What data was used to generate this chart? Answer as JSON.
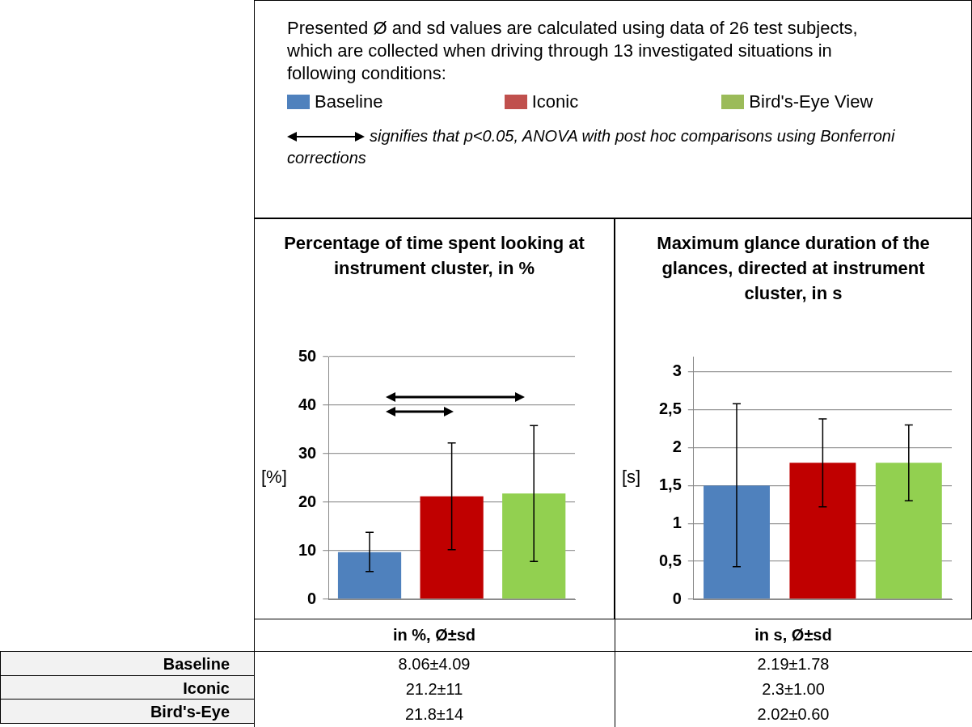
{
  "chart_data": [
    {
      "type": "other",
      "annotations": [
        "Presented Ø and sd values are calculated using data of 26 test subjects, which are collected when driving through 13 investigated situations in following conditions:",
        "signifies that p<0.05, ANOVA with post hoc comparisons using Bonferroni corrections"
      ],
      "categories": [
        "Baseline",
        "Iconic",
        "Bird's-Eye View"
      ],
      "colors": [
        "#4f81bd",
        "#c0504d",
        "#9bbb59"
      ]
    },
    {
      "type": "bar",
      "title": "Percentage of time spent looking at instrument cluster, in %",
      "ylabel": "[%]",
      "categories": [
        null,
        null,
        null
      ],
      "values": [
        9.7,
        21.2,
        21.8
      ],
      "colors": [
        "#4f81bd",
        "#c00000",
        "#92d050"
      ],
      "errors": [
        [
          5.7,
          13.8
        ],
        [
          10.2,
          32.2
        ],
        [
          7.8,
          35.8
        ]
      ],
      "ylim": [
        0,
        50
      ],
      "yticks": [
        0,
        10,
        20,
        30,
        40,
        50
      ],
      "grid": "y",
      "legend": false,
      "annotations": [
        "in %, Ø±sd",
        "8.06±4.09",
        "21.2±11",
        "21.8±14"
      ]
    },
    {
      "type": "bar",
      "title": "Maximum glance duration of the glances, directed at instrument cluster, in s",
      "ylabel": "[s]",
      "categories": [
        null,
        null,
        null
      ],
      "values": [
        1.5,
        1.8,
        1.8
      ],
      "colors": [
        "#4f81bd",
        "#c00000",
        "#92d050"
      ],
      "errors": [
        [
          0.43,
          2.58
        ],
        [
          1.22,
          2.38
        ],
        [
          1.3,
          2.3
        ]
      ],
      "ylim": [
        0,
        3.2
      ],
      "yticks": [
        0,
        {
          "value": 0.5,
          "label": "0,5"
        },
        1,
        {
          "value": 1.5,
          "label": "1,5"
        },
        2,
        {
          "value": 2.5,
          "label": "2,5"
        },
        3
      ],
      "grid": "y",
      "legend": false,
      "annotations": [
        "in s, Ø±sd",
        "2.19±1.78",
        "2.3±1.00",
        "2.02±0.60"
      ]
    },
    {
      "type": "other",
      "categories": [
        "Baseline",
        "Iconic",
        "Bird's-Eye"
      ]
    }
  ]
}
